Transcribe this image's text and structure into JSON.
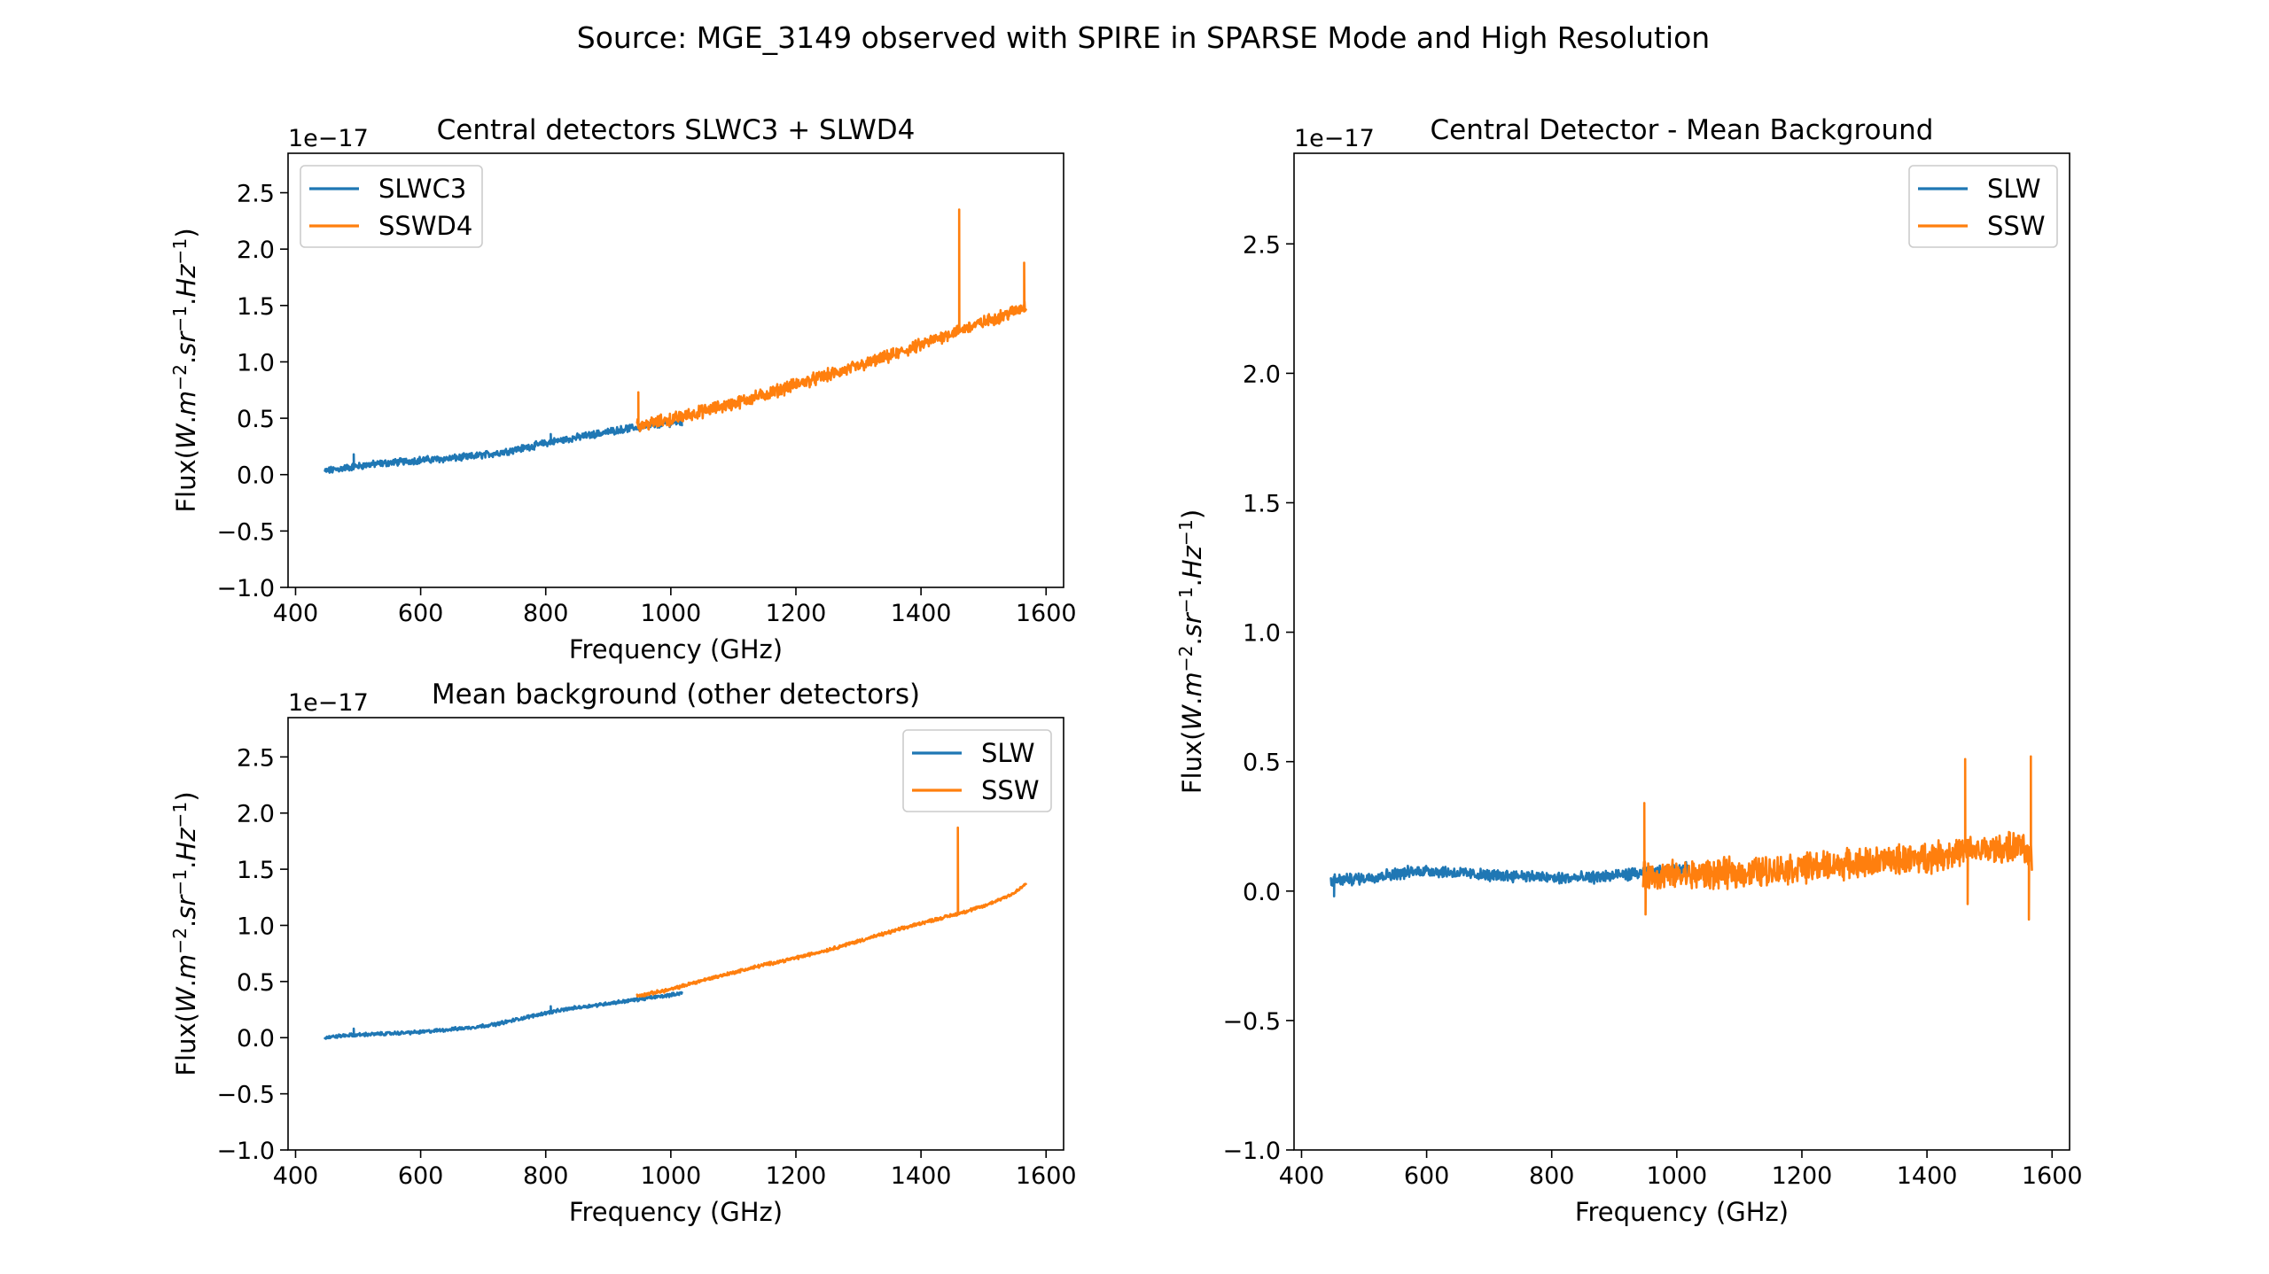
{
  "figure_title": "Source: MGE_3149 observed with SPIRE in SPARSE Mode and High Resolution",
  "colors": {
    "blue": "#1f77b4",
    "orange": "#ff7f0e"
  },
  "chart_data": [
    {
      "type": "line",
      "title": "Central detectors SLWC3 + SLWD4",
      "xlabel": "Frequency (GHz)",
      "ylabel": "Flux(W.m⁻².sr⁻¹.Hz⁻¹)",
      "ylabel_html": "Flux(<tspan font-style=\"italic\">W</tspan>.<tspan font-style=\"italic\">m</tspan><tspan font-size=\"70%\" dy=\"-10\">−2</tspan><tspan dy=\"10\">.</tspan><tspan font-style=\"italic\">sr</tspan><tspan font-size=\"70%\" dy=\"-10\">−1</tspan><tspan dy=\"10\">.</tspan><tspan font-style=\"italic\">Hz</tspan><tspan font-size=\"70%\" dy=\"-10\">−1</tspan><tspan dy=\"10\">)</tspan>",
      "y_offset_label": "1e−17",
      "xlim": [
        388,
        1628
      ],
      "ylim": [
        -1.0,
        2.85
      ],
      "xticks": [
        400,
        600,
        800,
        1000,
        1200,
        1400,
        1600
      ],
      "yticks": [
        -1.0,
        -0.5,
        0.0,
        0.5,
        1.0,
        1.5,
        2.0,
        2.5
      ],
      "ytick_labels": [
        "−1.0",
        "−0.5",
        "0.0",
        "0.5",
        "1.0",
        "1.5",
        "2.0",
        "2.5"
      ],
      "legend": "upper left",
      "series": [
        {
          "name": "SLWC3",
          "color": "#1f77b4",
          "x": [
            447,
            480,
            520,
            560,
            600,
            640,
            680,
            720,
            760,
            800,
            840,
            880,
            920,
            960,
            1000,
            1018
          ],
          "y": [
            0.03,
            0.06,
            0.09,
            0.11,
            0.13,
            0.14,
            0.16,
            0.19,
            0.23,
            0.28,
            0.32,
            0.36,
            0.4,
            0.43,
            0.46,
            0.47
          ],
          "noise": 0.025,
          "spikes": [
            [
              493,
              0.18
            ],
            [
              808,
              0.36
            ]
          ]
        },
        {
          "name": "SSWD4",
          "color": "#ff7f0e",
          "x": [
            946,
            1000,
            1050,
            1100,
            1150,
            1200,
            1250,
            1300,
            1350,
            1400,
            1450,
            1500,
            1550,
            1568
          ],
          "y": [
            0.43,
            0.49,
            0.56,
            0.63,
            0.71,
            0.8,
            0.88,
            0.96,
            1.05,
            1.15,
            1.26,
            1.35,
            1.45,
            1.5
          ],
          "noise": 0.045,
          "spikes": [
            [
              948,
              0.73
            ],
            [
              1461,
              2.35
            ],
            [
              1565,
              1.88
            ]
          ]
        }
      ]
    },
    {
      "type": "line",
      "title": "Mean background (other detectors)",
      "xlabel": "Frequency (GHz)",
      "ylabel": "Flux(W.m⁻².sr⁻¹.Hz⁻¹)",
      "ylabel_html": "Flux(<tspan font-style=\"italic\">W</tspan>.<tspan font-style=\"italic\">m</tspan><tspan font-size=\"70%\" dy=\"-10\">−2</tspan><tspan dy=\"10\">.</tspan><tspan font-style=\"italic\">sr</tspan><tspan font-size=\"70%\" dy=\"-10\">−1</tspan><tspan dy=\"10\">.</tspan><tspan font-style=\"italic\">Hz</tspan><tspan font-size=\"70%\" dy=\"-10\">−1</tspan><tspan dy=\"10\">)</tspan>",
      "y_offset_label": "1e−17",
      "xlim": [
        388,
        1628
      ],
      "ylim": [
        -1.0,
        2.85
      ],
      "xticks": [
        400,
        600,
        800,
        1000,
        1200,
        1400,
        1600
      ],
      "yticks": [
        -1.0,
        -0.5,
        0.0,
        0.5,
        1.0,
        1.5,
        2.0,
        2.5
      ],
      "ytick_labels": [
        "−1.0",
        "−0.5",
        "0.0",
        "0.5",
        "1.0",
        "1.5",
        "2.0",
        "2.5"
      ],
      "legend": "upper right",
      "series": [
        {
          "name": "SLW",
          "color": "#1f77b4",
          "x": [
            447,
            480,
            520,
            560,
            600,
            640,
            680,
            720,
            760,
            800,
            840,
            880,
            920,
            960,
            1000,
            1018
          ],
          "y": [
            0.0,
            0.02,
            0.03,
            0.04,
            0.05,
            0.07,
            0.09,
            0.12,
            0.17,
            0.22,
            0.26,
            0.29,
            0.32,
            0.35,
            0.38,
            0.4
          ],
          "noise": 0.012,
          "spikes": [
            [
              493,
              0.08
            ],
            [
              808,
              0.28
            ]
          ]
        },
        {
          "name": "SSW",
          "color": "#ff7f0e",
          "x": [
            946,
            1000,
            1050,
            1100,
            1150,
            1200,
            1250,
            1300,
            1350,
            1400,
            1450,
            1500,
            1550,
            1568
          ],
          "y": [
            0.37,
            0.43,
            0.51,
            0.58,
            0.65,
            0.71,
            0.78,
            0.86,
            0.94,
            1.02,
            1.09,
            1.17,
            1.29,
            1.37
          ],
          "noise": 0.012,
          "spikes": [
            [
              1459,
              1.87
            ]
          ]
        }
      ]
    },
    {
      "type": "line",
      "title": "Central Detector - Mean Background",
      "xlabel": "Frequency (GHz)",
      "ylabel": "Flux(W.m⁻².sr⁻¹.Hz⁻¹)",
      "ylabel_html": "Flux(<tspan font-style=\"italic\">W</tspan>.<tspan font-style=\"italic\">m</tspan><tspan font-size=\"70%\" dy=\"-10\">−2</tspan><tspan dy=\"10\">.</tspan><tspan font-style=\"italic\">sr</tspan><tspan font-size=\"70%\" dy=\"-10\">−1</tspan><tspan dy=\"10\">.</tspan><tspan font-style=\"italic\">Hz</tspan><tspan font-size=\"70%\" dy=\"-10\">−1</tspan><tspan dy=\"10\">)</tspan>",
      "y_offset_label": "1e−17",
      "xlim": [
        388,
        1628
      ],
      "ylim": [
        -1.0,
        2.85
      ],
      "xticks": [
        400,
        600,
        800,
        1000,
        1200,
        1400,
        1600
      ],
      "yticks": [
        -1.0,
        -0.5,
        0.0,
        0.5,
        1.0,
        1.5,
        2.0,
        2.5
      ],
      "ytick_labels": [
        "−1.0",
        "−0.5",
        "0.0",
        "0.5",
        "1.0",
        "1.5",
        "2.0",
        "2.5"
      ],
      "legend": "upper right",
      "series": [
        {
          "name": "SLW",
          "color": "#1f77b4",
          "x": [
            447,
            500,
            560,
            600,
            650,
            700,
            750,
            800,
            850,
            900,
            950,
            1000,
            1018
          ],
          "y": [
            0.04,
            0.05,
            0.07,
            0.08,
            0.07,
            0.06,
            0.06,
            0.05,
            0.05,
            0.06,
            0.07,
            0.08,
            0.09
          ],
          "noise": 0.018,
          "spikes": [
            [
              452,
              -0.02
            ],
            [
              1018,
              0.16
            ]
          ]
        },
        {
          "name": "SSW",
          "color": "#ff7f0e",
          "x": [
            946,
            1000,
            1100,
            1200,
            1300,
            1400,
            1450,
            1500,
            1550,
            1568
          ],
          "y": [
            0.06,
            0.06,
            0.07,
            0.09,
            0.11,
            0.13,
            0.15,
            0.16,
            0.17,
            0.12
          ],
          "noise": 0.045,
          "spikes": [
            [
              948,
              0.34
            ],
            [
              950,
              -0.09
            ],
            [
              1461,
              0.51
            ],
            [
              1465,
              -0.05
            ],
            [
              1563,
              -0.11
            ],
            [
              1566,
              0.52
            ]
          ]
        }
      ]
    }
  ]
}
